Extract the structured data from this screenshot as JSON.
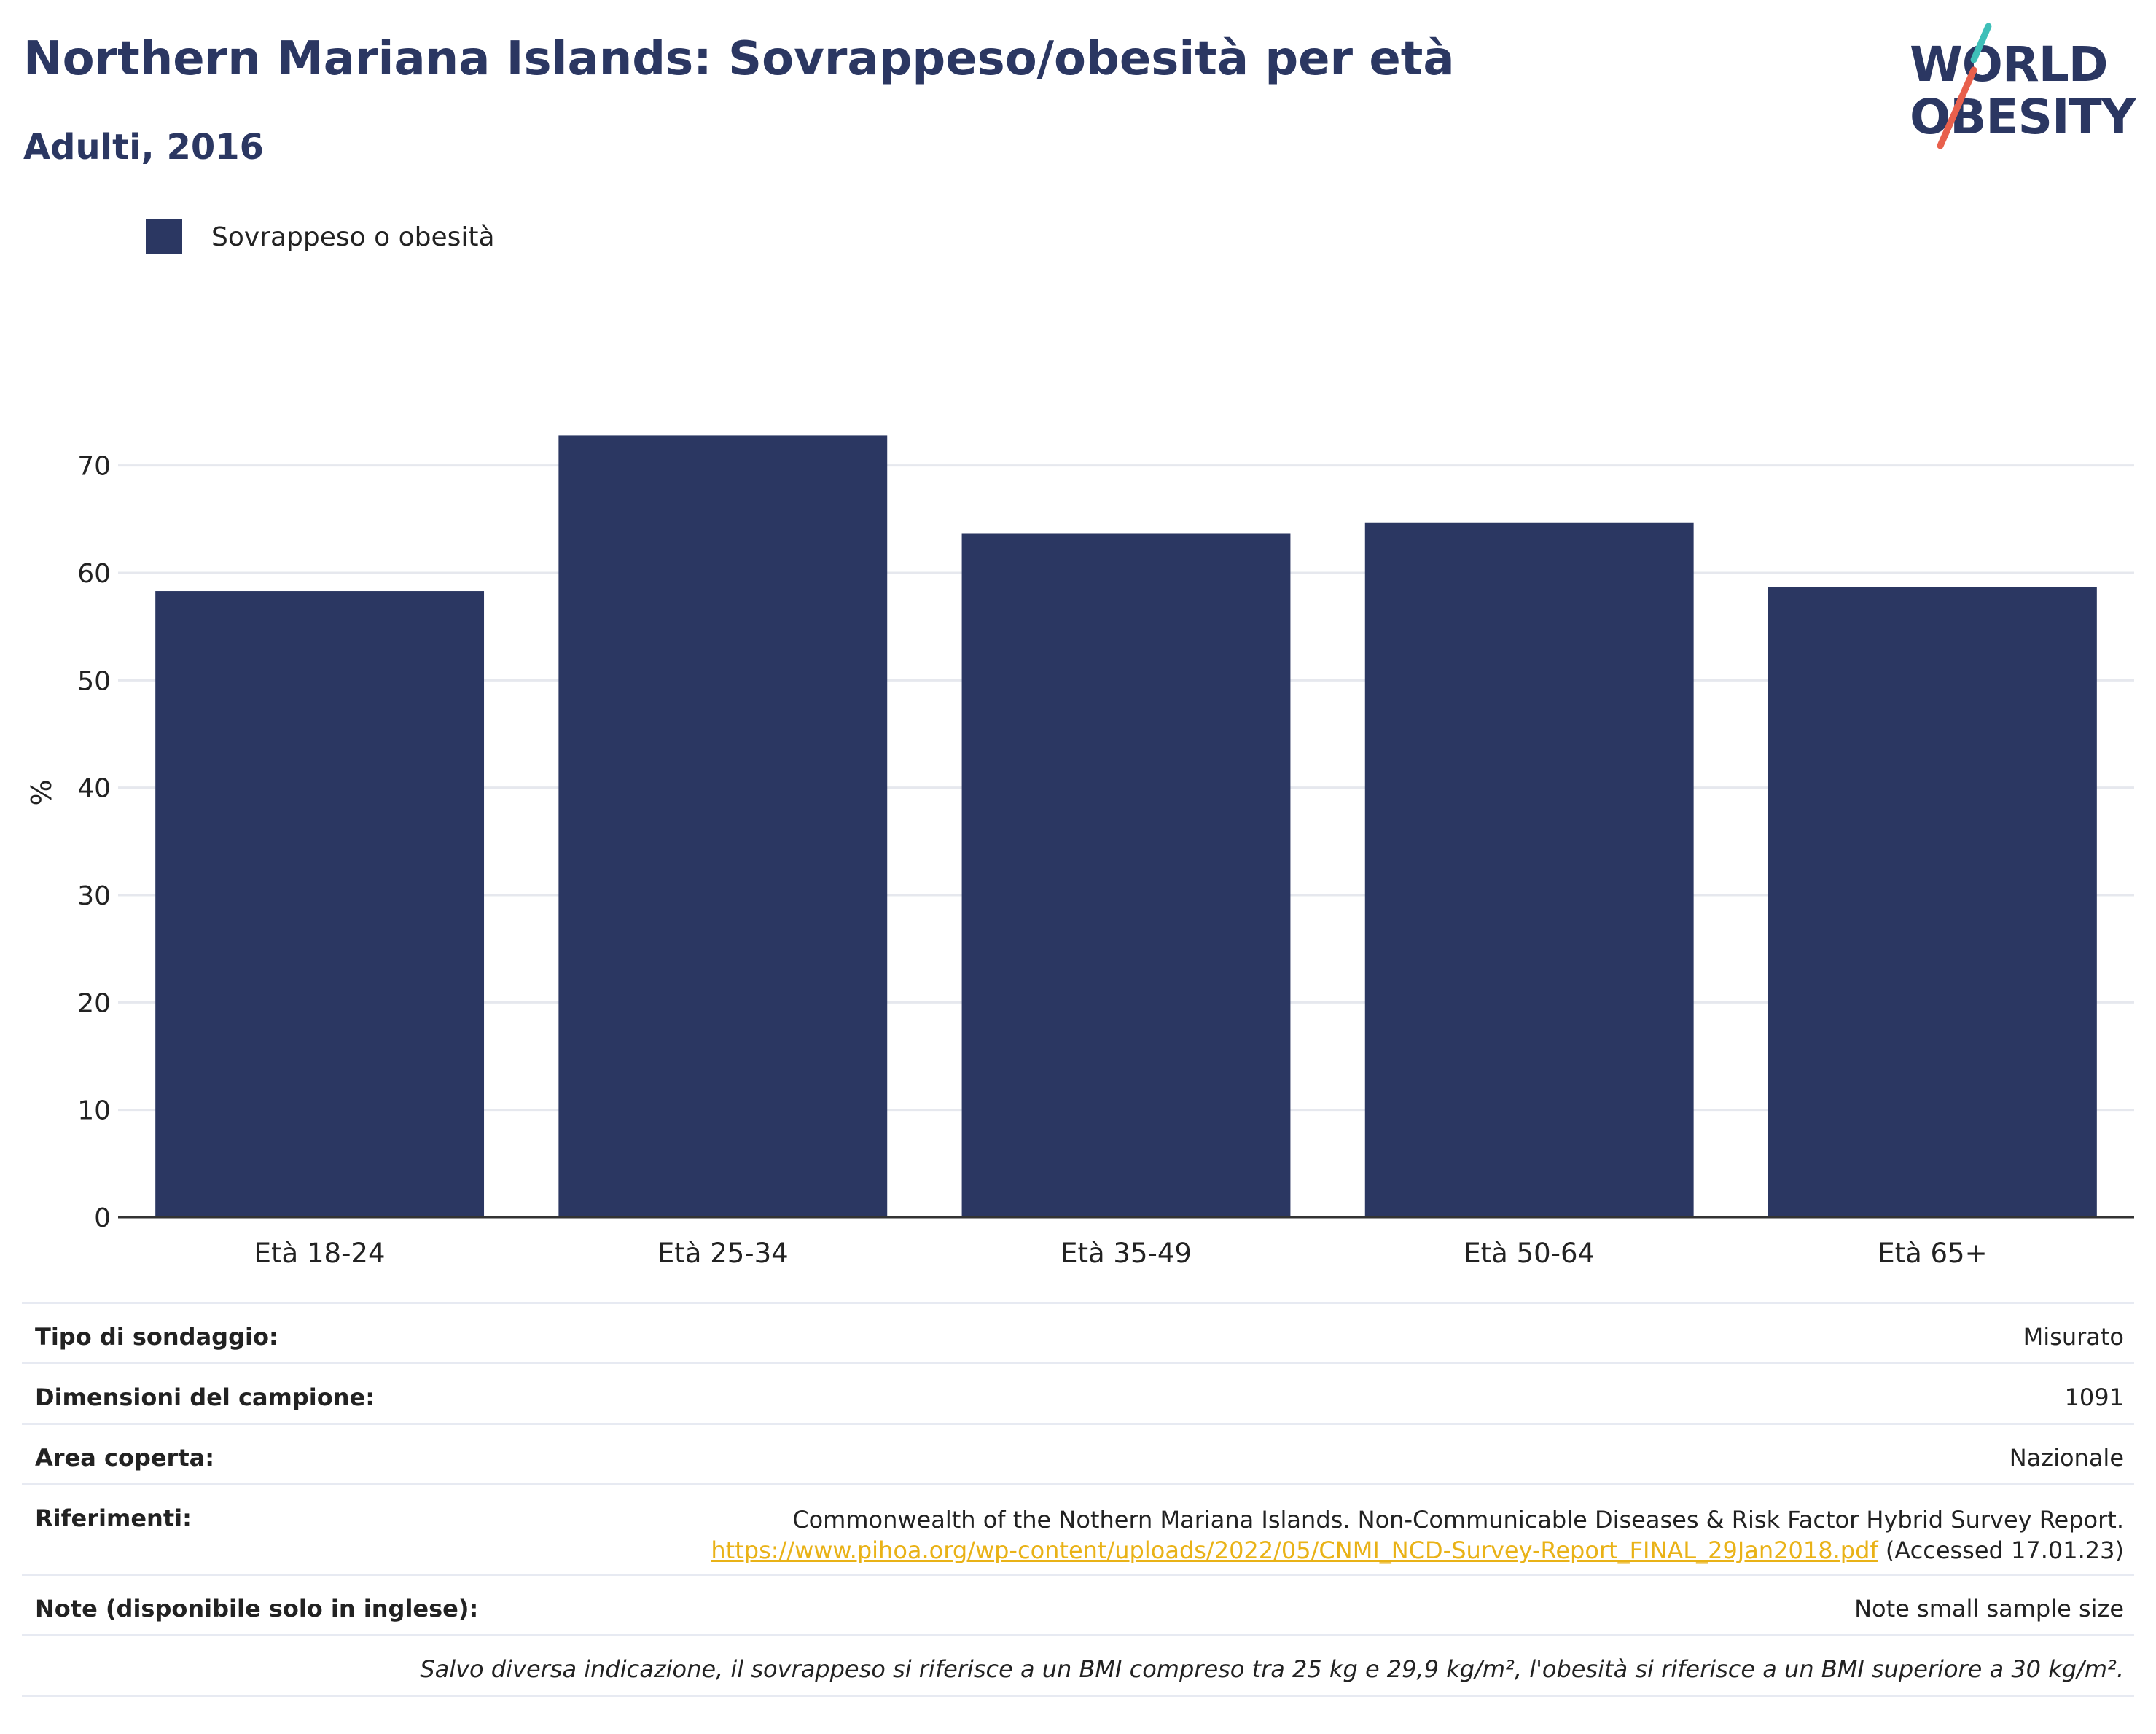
{
  "header": {
    "title": "Northern Mariana Islands: Sovrappeso/obesità per età",
    "subtitle": "Adulti, 2016"
  },
  "logo": {
    "line1": "WORLD",
    "line2": "OBESITY",
    "colors": [
      "#2b3762",
      "#3ebfb8",
      "#e8604c"
    ]
  },
  "chart_data": {
    "type": "bar",
    "categories": [
      "Età 18-24",
      "Età 25-34",
      "Età 35-49",
      "Età 50-64",
      "Età 65+"
    ],
    "series": [
      {
        "name": "Sovrappeso o obesità",
        "values": [
          58.3,
          72.8,
          63.7,
          64.7,
          58.7
        ],
        "color": "#2b3762"
      }
    ],
    "ylabel": "%",
    "xlabel": "",
    "ylim": [
      0,
      75
    ],
    "yticks": [
      0,
      10,
      20,
      30,
      40,
      50,
      60,
      70
    ],
    "grid": true,
    "legend": "top-left"
  },
  "info": {
    "survey_type": {
      "label": "Tipo di sondaggio:",
      "value": "Misurato"
    },
    "sample_size": {
      "label": "Dimensioni del campione:",
      "value": "1091"
    },
    "area": {
      "label": "Area coperta:",
      "value": "Nazionale"
    },
    "references": {
      "label": "Riferimenti:",
      "text": "Commonwealth of the Nothern Mariana Islands. Non-Communicable Diseases & Risk Factor Hybrid Survey Report.",
      "link": "https://www.pihoa.org/wp-content/uploads/2022/05/CNMI_NCD-Survey-Report_FINAL_29Jan2018.pdf",
      "accessed": "(Accessed 17.01.23)"
    },
    "notes": {
      "label": "Note (disponibile solo in inglese):",
      "value": "Note small sample size"
    },
    "footnote": "Salvo diversa indicazione, il sovrappeso si riferisce a un BMI compreso tra 25 kg e 29,9 kg/m², l'obesità si riferisce a un BMI superiore a 30 kg/m²."
  }
}
